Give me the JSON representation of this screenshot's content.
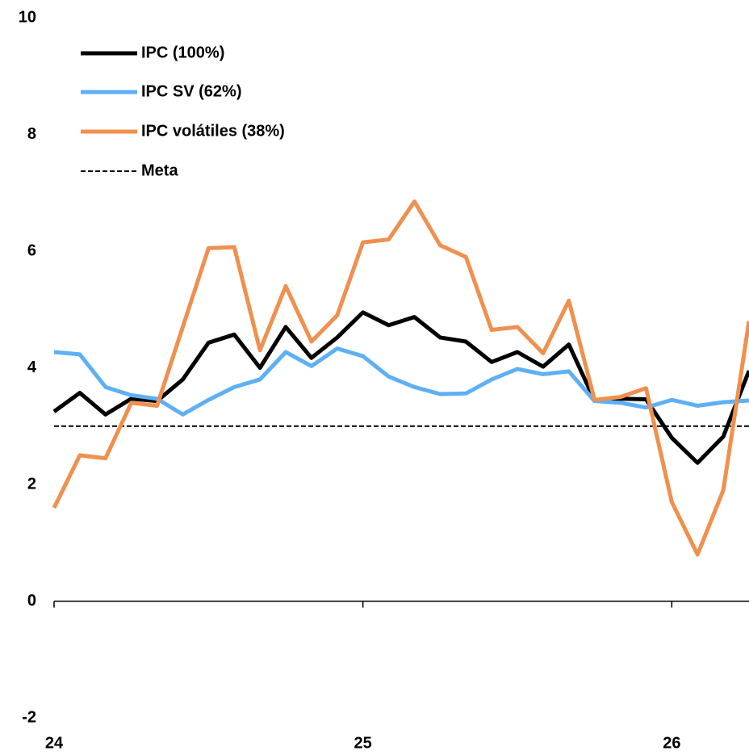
{
  "chart_data": {
    "type": "line",
    "x": [
      0,
      1,
      2,
      3,
      4,
      5,
      6,
      7,
      8,
      9,
      10,
      11,
      12,
      13,
      14,
      15,
      16,
      17,
      18,
      19,
      20,
      21,
      22,
      23,
      24,
      25,
      26,
      27
    ],
    "xlim": [
      0,
      27
    ],
    "xticks": [
      {
        "value": 0,
        "label": "24"
      },
      {
        "value": 12,
        "label": "25"
      },
      {
        "value": 24,
        "label": "26"
      }
    ],
    "ylim": [
      -2,
      10
    ],
    "yticks": [
      -2,
      0,
      2,
      4,
      6,
      8,
      10
    ],
    "grid": false,
    "legend": "top-left",
    "series": [
      {
        "name": "IPC (100%)",
        "color": "#000000",
        "values": [
          3.25,
          3.57,
          3.2,
          3.47,
          3.43,
          3.8,
          4.43,
          4.57,
          4.0,
          4.7,
          4.17,
          4.52,
          4.95,
          4.73,
          4.87,
          4.52,
          4.45,
          4.1,
          4.27,
          4.02,
          4.4,
          3.44,
          3.47,
          3.46,
          2.8,
          2.37,
          2.82,
          3.95
        ]
      },
      {
        "name": "IPC SV (62%)",
        "color": "#5eb0f5",
        "values": [
          4.27,
          4.23,
          3.67,
          3.53,
          3.47,
          3.2,
          3.45,
          3.67,
          3.8,
          4.27,
          4.03,
          4.33,
          4.2,
          3.85,
          3.67,
          3.55,
          3.56,
          3.8,
          3.98,
          3.89,
          3.94,
          3.43,
          3.4,
          3.32,
          3.45,
          3.35,
          3.41,
          3.44
        ]
      },
      {
        "name": "IPC volátiles (38%)",
        "color": "#f0904f",
        "values": [
          1.6,
          2.5,
          2.45,
          3.4,
          3.35,
          4.7,
          6.05,
          6.07,
          4.3,
          5.4,
          4.45,
          4.9,
          6.15,
          6.2,
          6.85,
          6.1,
          5.9,
          4.65,
          4.7,
          4.25,
          5.15,
          3.45,
          3.5,
          3.65,
          1.7,
          0.8,
          1.9,
          4.8
        ]
      }
    ],
    "reference_line": {
      "name": "Meta",
      "value": 3,
      "color": "#000000"
    }
  }
}
